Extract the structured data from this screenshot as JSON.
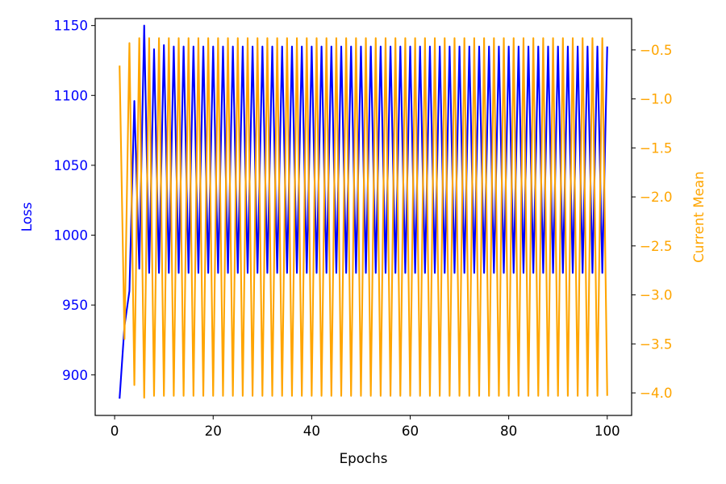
{
  "chart_data": {
    "type": "line",
    "title": "",
    "xlabel": "Epochs",
    "ylabel_left": "Loss",
    "ylabel_right": "Current Mean",
    "xlim": [
      -3.95,
      104.95
    ],
    "ylim_left": [
      871,
      1155
    ],
    "ylim_right": [
      -4.23,
      -0.18
    ],
    "x_ticks": [
      0,
      20,
      40,
      60,
      80,
      100
    ],
    "y_ticks_left": [
      900,
      950,
      1000,
      1050,
      1100,
      1150
    ],
    "y_ticks_right": [
      -0.5,
      -1.0,
      -1.5,
      -2.0,
      -2.5,
      -3.0,
      -3.5,
      -4.0
    ],
    "grid": false,
    "colors": {
      "loss": "#0000ff",
      "mean": "#ffa500",
      "axis": "#000000"
    },
    "series": [
      {
        "axis": "left",
        "color": "#0000ff",
        "x_start": 1,
        "values": [
          883,
          935,
          960,
          1096,
          976,
          1150,
          973,
          1133,
          973,
          1136,
          973,
          1135,
          973,
          1135,
          973,
          1135,
          973,
          1135,
          973,
          1135,
          973,
          1135,
          973,
          1135,
          973,
          1135,
          973,
          1135,
          973,
          1135,
          973,
          1135,
          973,
          1135,
          973,
          1135,
          973,
          1135,
          973,
          1135,
          973,
          1135,
          973,
          1135,
          973,
          1135,
          973,
          1135,
          973,
          1135,
          973,
          1135,
          973,
          1135,
          973,
          1135,
          973,
          1135,
          973,
          1135,
          973,
          1135,
          973,
          1135,
          973,
          1135,
          973,
          1135,
          973,
          1135,
          973,
          1135,
          973,
          1135,
          973,
          1135,
          973,
          1135,
          973,
          1135,
          973,
          1135,
          973,
          1135,
          973,
          1135,
          973,
          1135,
          973,
          1135,
          973,
          1135,
          973,
          1135,
          973,
          1135,
          973,
          1135,
          973,
          1135
        ]
      },
      {
        "axis": "right",
        "color": "#ffa500",
        "x_start": 1,
        "values": [
          -0.66,
          -3.45,
          -0.43,
          -3.92,
          -0.38,
          -4.05,
          -0.38,
          -4.03,
          -0.38,
          -4.03,
          -0.38,
          -4.03,
          -0.38,
          -4.03,
          -0.38,
          -4.03,
          -0.38,
          -4.03,
          -0.38,
          -4.03,
          -0.38,
          -4.03,
          -0.38,
          -4.03,
          -0.38,
          -4.03,
          -0.38,
          -4.03,
          -0.38,
          -4.03,
          -0.38,
          -4.03,
          -0.38,
          -4.03,
          -0.38,
          -4.03,
          -0.38,
          -4.03,
          -0.38,
          -4.03,
          -0.38,
          -4.03,
          -0.38,
          -4.03,
          -0.38,
          -4.03,
          -0.38,
          -4.03,
          -0.38,
          -4.03,
          -0.38,
          -4.03,
          -0.38,
          -4.03,
          -0.38,
          -4.03,
          -0.38,
          -4.03,
          -0.38,
          -4.03,
          -0.38,
          -4.03,
          -0.38,
          -4.03,
          -0.38,
          -4.03,
          -0.38,
          -4.03,
          -0.38,
          -4.03,
          -0.38,
          -4.03,
          -0.38,
          -4.03,
          -0.38,
          -4.03,
          -0.38,
          -4.03,
          -0.38,
          -4.03,
          -0.38,
          -4.03,
          -0.38,
          -4.03,
          -0.38,
          -4.03,
          -0.38,
          -4.03,
          -0.38,
          -4.03,
          -0.38,
          -4.03,
          -0.38,
          -4.03,
          -0.38,
          -4.03,
          -0.38,
          -4.03,
          -0.38,
          -4.03
        ]
      }
    ]
  }
}
